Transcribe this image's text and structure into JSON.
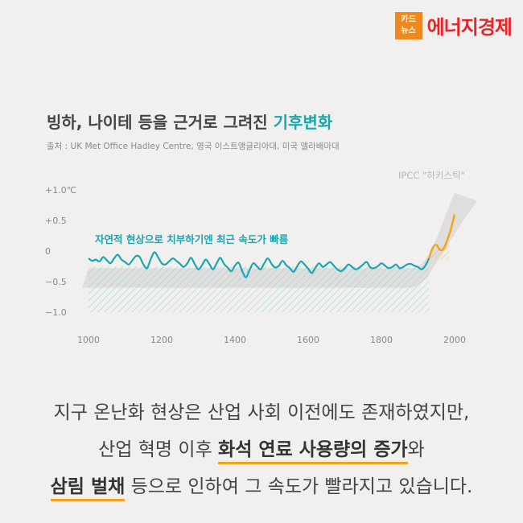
{
  "brand": {
    "badge_line1": "카드",
    "badge_line2": "뉴스",
    "name": "에너지경제"
  },
  "title": {
    "main": "빙하, 나이테 등을 근거로 그려진 ",
    "accent": "기후변화"
  },
  "source": "출처 : UK Met Office Hadley Centre, 영국 이스트앵글리아대, 미국 앨라배마대",
  "chart_data": {
    "type": "line",
    "x_ticks": [
      "1000",
      "1200",
      "1400",
      "1600",
      "1800",
      "2000"
    ],
    "y_ticks": [
      "+1.0℃",
      "+0.5",
      "0",
      "−0.5",
      "−1.0"
    ],
    "xlim": [
      1000,
      2000
    ],
    "ylim": [
      -1.0,
      1.0
    ],
    "annotation_natural": "자연적 현상으로 치부하기엔 최근 속도가 빠름",
    "annotation_ipcc": "IPCC \"하키스틱\"",
    "colors": {
      "natural": "#1aa6b0",
      "recent": "#f3a41b",
      "band": "#cfcfcf"
    },
    "series": [
      {
        "values_x": [
          1000,
          1010,
          1020,
          1030,
          1040,
          1050,
          1060,
          1070,
          1080,
          1090,
          1100,
          1110,
          1120,
          1130,
          1140,
          1150,
          1160,
          1170,
          1180,
          1190,
          1200,
          1210,
          1220,
          1230,
          1240,
          1250,
          1260,
          1270,
          1280,
          1290,
          1300,
          1310,
          1320,
          1330,
          1340,
          1350,
          1360,
          1370,
          1380,
          1390,
          1400,
          1410,
          1420,
          1430,
          1440,
          1450,
          1460,
          1470,
          1480,
          1490,
          1500,
          1510,
          1520,
          1530,
          1540,
          1550,
          1560,
          1570,
          1580,
          1590,
          1600,
          1610,
          1620,
          1630,
          1640,
          1650,
          1660,
          1670,
          1680,
          1690,
          1700,
          1710,
          1720,
          1730,
          1740,
          1750,
          1760,
          1770,
          1780,
          1790,
          1800,
          1810,
          1820,
          1830,
          1840,
          1850,
          1860,
          1870,
          1880,
          1890,
          1900,
          1910,
          1920,
          1930
        ],
        "values_y": [
          -0.12,
          -0.16,
          -0.14,
          -0.17,
          -0.1,
          -0.15,
          -0.2,
          -0.12,
          -0.06,
          -0.14,
          -0.18,
          -0.22,
          -0.15,
          -0.08,
          -0.1,
          -0.22,
          -0.28,
          -0.13,
          -0.02,
          -0.1,
          -0.2,
          -0.22,
          -0.17,
          -0.12,
          -0.16,
          -0.21,
          -0.26,
          -0.2,
          -0.11,
          -0.21,
          -0.3,
          -0.23,
          -0.14,
          -0.21,
          -0.3,
          -0.2,
          -0.11,
          -0.21,
          -0.27,
          -0.33,
          -0.24,
          -0.19,
          -0.33,
          -0.43,
          -0.31,
          -0.2,
          -0.25,
          -0.3,
          -0.2,
          -0.12,
          -0.21,
          -0.27,
          -0.24,
          -0.16,
          -0.23,
          -0.28,
          -0.34,
          -0.25,
          -0.17,
          -0.22,
          -0.29,
          -0.36,
          -0.27,
          -0.2,
          -0.26,
          -0.22,
          -0.18,
          -0.24,
          -0.3,
          -0.33,
          -0.28,
          -0.22,
          -0.26,
          -0.3,
          -0.27,
          -0.22,
          -0.18,
          -0.27,
          -0.28,
          -0.25,
          -0.2,
          -0.24,
          -0.28,
          -0.26,
          -0.22,
          -0.28,
          -0.26,
          -0.22,
          -0.21,
          -0.24,
          -0.26,
          -0.3,
          -0.24,
          -0.12
        ]
      },
      {
        "values_x": [
          1930,
          1940,
          1950,
          1960,
          1970,
          1980,
          1990,
          2000
        ],
        "values_y": [
          -0.12,
          0.05,
          0.1,
          0.02,
          0.04,
          0.18,
          0.36,
          0.6
        ]
      }
    ]
  },
  "caption": {
    "line1": "지구 온난화 현상은 산업 사회 이전에도 존재하였지만,",
    "line2_pre": "산업 혁명 이후 ",
    "line2_bold": "화석 연료 사용량의 증가",
    "line2_post": "와",
    "line3_bold": "삼림 벌채",
    "line3_post": " 등으로 인하여 그 속도가 빨라지고 있습니다."
  }
}
